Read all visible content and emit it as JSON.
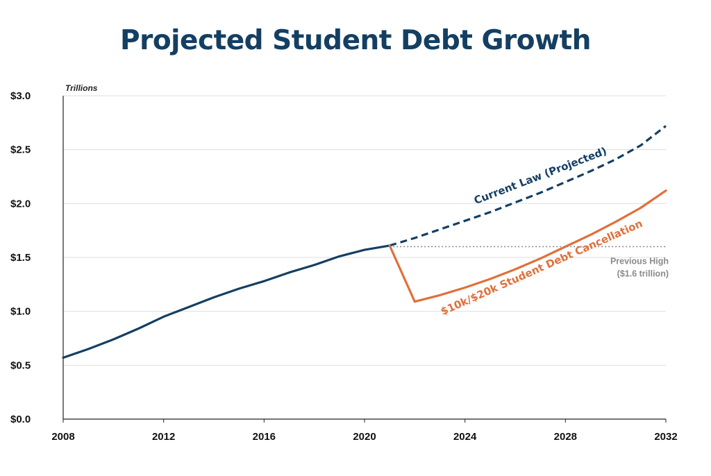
{
  "title": "Projected Student Debt Growth",
  "chart_data": {
    "type": "line",
    "title": "Projected Student Debt Growth",
    "y_unit": "Trillions",
    "xlim": [
      2008,
      2032
    ],
    "ylim": [
      0,
      3.0
    ],
    "x_ticks": [
      "2008",
      "2012",
      "2016",
      "2020",
      "2024",
      "2028",
      "2032"
    ],
    "y_ticks": [
      "$0.0",
      "$0.5",
      "$1.0",
      "$1.5",
      "$2.0",
      "$2.5",
      "$3.0"
    ],
    "grid": true,
    "series": [
      {
        "name": "",
        "color": "#143f63",
        "style": "solid",
        "points": [
          [
            2008,
            0.57
          ],
          [
            2009,
            0.65
          ],
          [
            2010,
            0.74
          ],
          [
            2011,
            0.84
          ],
          [
            2012,
            0.95
          ],
          [
            2013,
            1.04
          ],
          [
            2014,
            1.13
          ],
          [
            2015,
            1.21
          ],
          [
            2016,
            1.28
          ],
          [
            2017,
            1.36
          ],
          [
            2018,
            1.43
          ],
          [
            2019,
            1.51
          ],
          [
            2020,
            1.57
          ],
          [
            2021,
            1.61
          ]
        ]
      },
      {
        "name": "Current Law (Projected)",
        "color": "#143f63",
        "style": "dashed",
        "points": [
          [
            2021,
            1.61
          ],
          [
            2022,
            1.68
          ],
          [
            2023,
            1.76
          ],
          [
            2024,
            1.84
          ],
          [
            2025,
            1.92
          ],
          [
            2026,
            2.01
          ],
          [
            2027,
            2.1
          ],
          [
            2028,
            2.2
          ],
          [
            2029,
            2.3
          ],
          [
            2030,
            2.41
          ],
          [
            2031,
            2.54
          ],
          [
            2032,
            2.72
          ]
        ]
      },
      {
        "name": "$10k/$20k Student Debt Cancellation",
        "color": "#e0703a",
        "style": "solid",
        "points": [
          [
            2021,
            1.61
          ],
          [
            2022,
            1.09
          ],
          [
            2023,
            1.15
          ],
          [
            2024,
            1.22
          ],
          [
            2025,
            1.3
          ],
          [
            2026,
            1.39
          ],
          [
            2027,
            1.49
          ],
          [
            2028,
            1.6
          ],
          [
            2029,
            1.71
          ],
          [
            2030,
            1.83
          ],
          [
            2031,
            1.96
          ],
          [
            2032,
            2.12
          ]
        ]
      }
    ],
    "reference_line": {
      "y": 1.6,
      "x_start": 2021,
      "label_line1": "Previous High",
      "label_line2": "($1.6 trillion)",
      "color": "#8a8a8a"
    }
  }
}
